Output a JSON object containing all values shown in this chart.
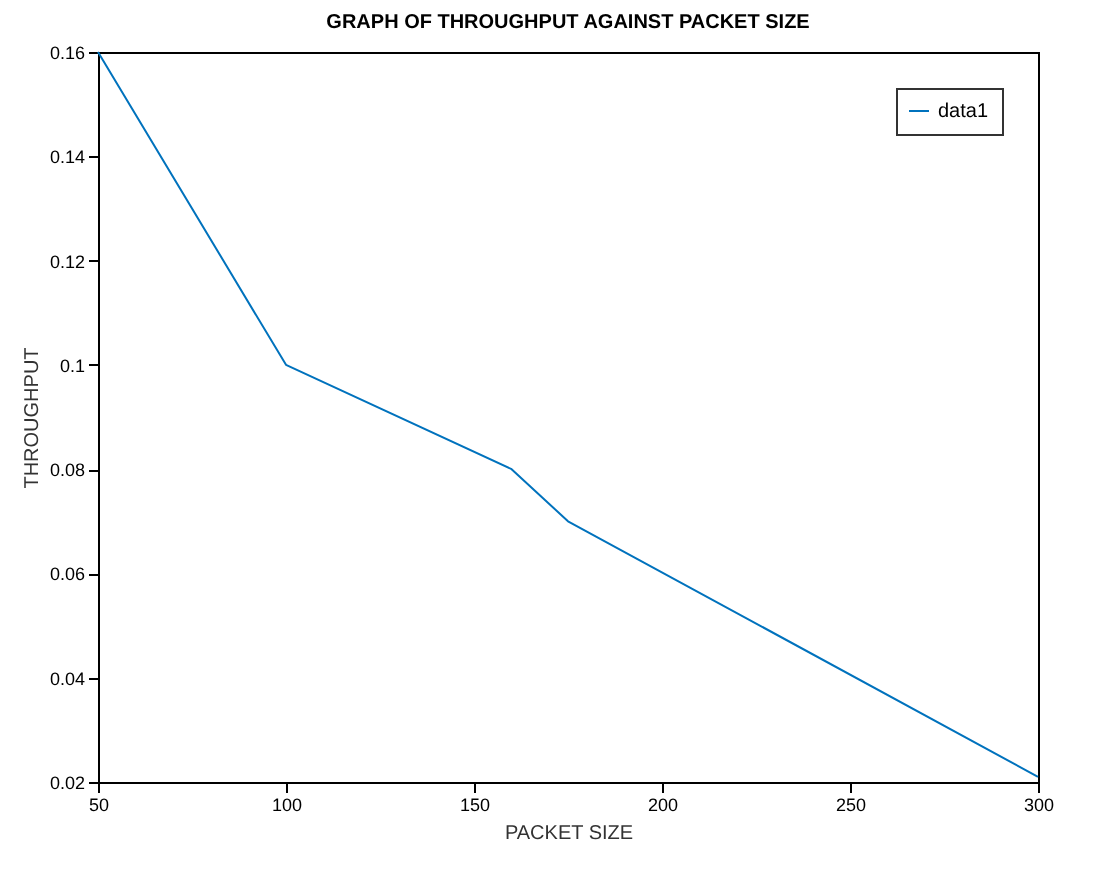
{
  "chart_data": {
    "type": "line",
    "title": "GRAPH OF THROUGHPUT AGAINST PACKET SIZE",
    "xlabel": "PACKET SIZE",
    "ylabel": "THROUGHPUT",
    "x": [
      50,
      100,
      160,
      175,
      300
    ],
    "series": [
      {
        "name": "data1",
        "color": "#0072bd",
        "values": [
          0.16,
          0.1,
          0.08,
          0.07,
          0.021
        ]
      }
    ],
    "xlim": [
      50,
      300
    ],
    "xticks": [
      50,
      100,
      150,
      200,
      250,
      300
    ],
    "ylim": [
      0.02,
      0.16
    ],
    "yticks": [
      0.02,
      0.04,
      0.06,
      0.08,
      0.1,
      0.12,
      0.14,
      0.16
    ],
    "legend": "top right",
    "grid": false,
    "marker": "none",
    "line_style": "solid"
  }
}
